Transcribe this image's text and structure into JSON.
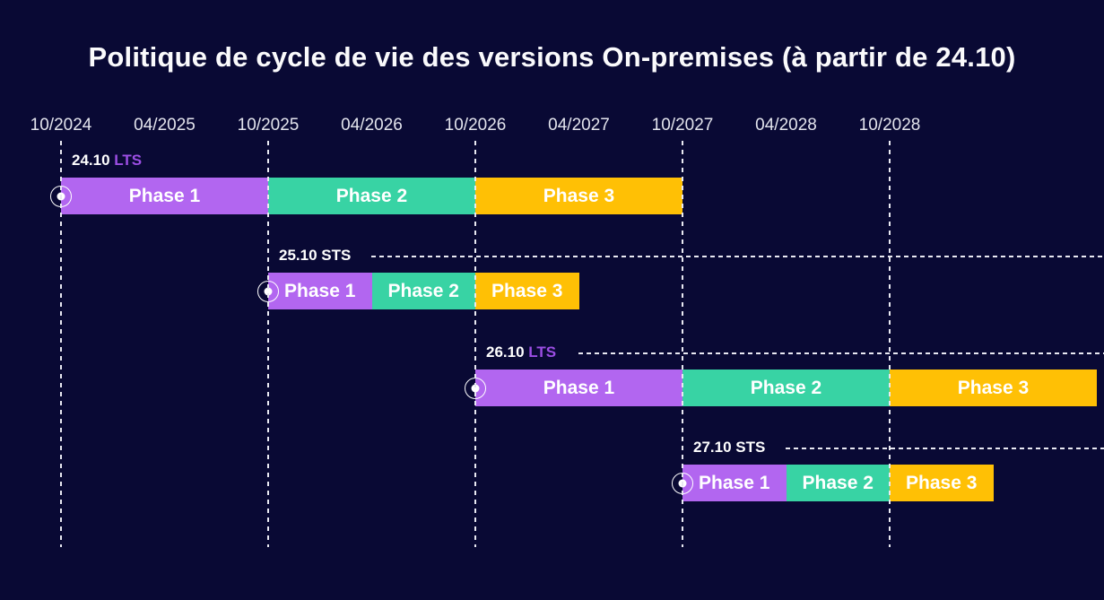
{
  "title": "Politique de cycle de vie des versions On-premises (à partir de 24.10)",
  "colors": {
    "background": "#090934",
    "phase1": "#b266f0",
    "phase2": "#38d3a4",
    "phase3": "#ffc005",
    "lts_text": "#9c4ee4",
    "sts_text": "#ffffff",
    "grid": "#e9e9f2",
    "text": "#ffffff"
  },
  "chart_data": {
    "type": "gantt-timeline",
    "title": "Politique de cycle de vie des versions On-premises (à partir de 24.10)",
    "x_ticks": [
      "10/2024",
      "04/2025",
      "10/2025",
      "04/2026",
      "10/2026",
      "04/2027",
      "10/2027",
      "04/2028",
      "10/2028"
    ],
    "gridline_months": [
      "10/2024",
      "10/2025",
      "10/2026",
      "10/2027",
      "10/2028"
    ],
    "x_range": [
      "10/2024",
      "04/2029"
    ],
    "grid": "vertical-dashed",
    "legend_position": "none",
    "releases": [
      {
        "version": "24.10",
        "type": "LTS",
        "trailing_dash_line": false,
        "phases": [
          {
            "name": "Phase 1",
            "start": "10/2024",
            "end": "10/2025"
          },
          {
            "name": "Phase 2",
            "start": "10/2025",
            "end": "10/2026"
          },
          {
            "name": "Phase 3",
            "start": "10/2026",
            "end": "10/2027"
          }
        ]
      },
      {
        "version": "25.10",
        "type": "STS",
        "trailing_dash_line": true,
        "phases": [
          {
            "name": "Phase 1",
            "start": "10/2025",
            "end": "04/2026"
          },
          {
            "name": "Phase 2",
            "start": "04/2026",
            "end": "10/2026"
          },
          {
            "name": "Phase 3",
            "start": "10/2026",
            "end": "04/2027"
          }
        ]
      },
      {
        "version": "26.10",
        "type": "LTS",
        "trailing_dash_line": true,
        "phases": [
          {
            "name": "Phase 1",
            "start": "10/2026",
            "end": "10/2027"
          },
          {
            "name": "Phase 2",
            "start": "10/2027",
            "end": "10/2028"
          },
          {
            "name": "Phase 3",
            "start": "10/2028",
            "end": "10/2029"
          }
        ]
      },
      {
        "version": "27.10",
        "type": "STS",
        "trailing_dash_line": true,
        "phases": [
          {
            "name": "Phase 1",
            "start": "10/2027",
            "end": "04/2028"
          },
          {
            "name": "Phase 2",
            "start": "04/2028",
            "end": "10/2028"
          },
          {
            "name": "Phase 3",
            "start": "10/2028",
            "end": "04/2029"
          }
        ]
      }
    ]
  }
}
